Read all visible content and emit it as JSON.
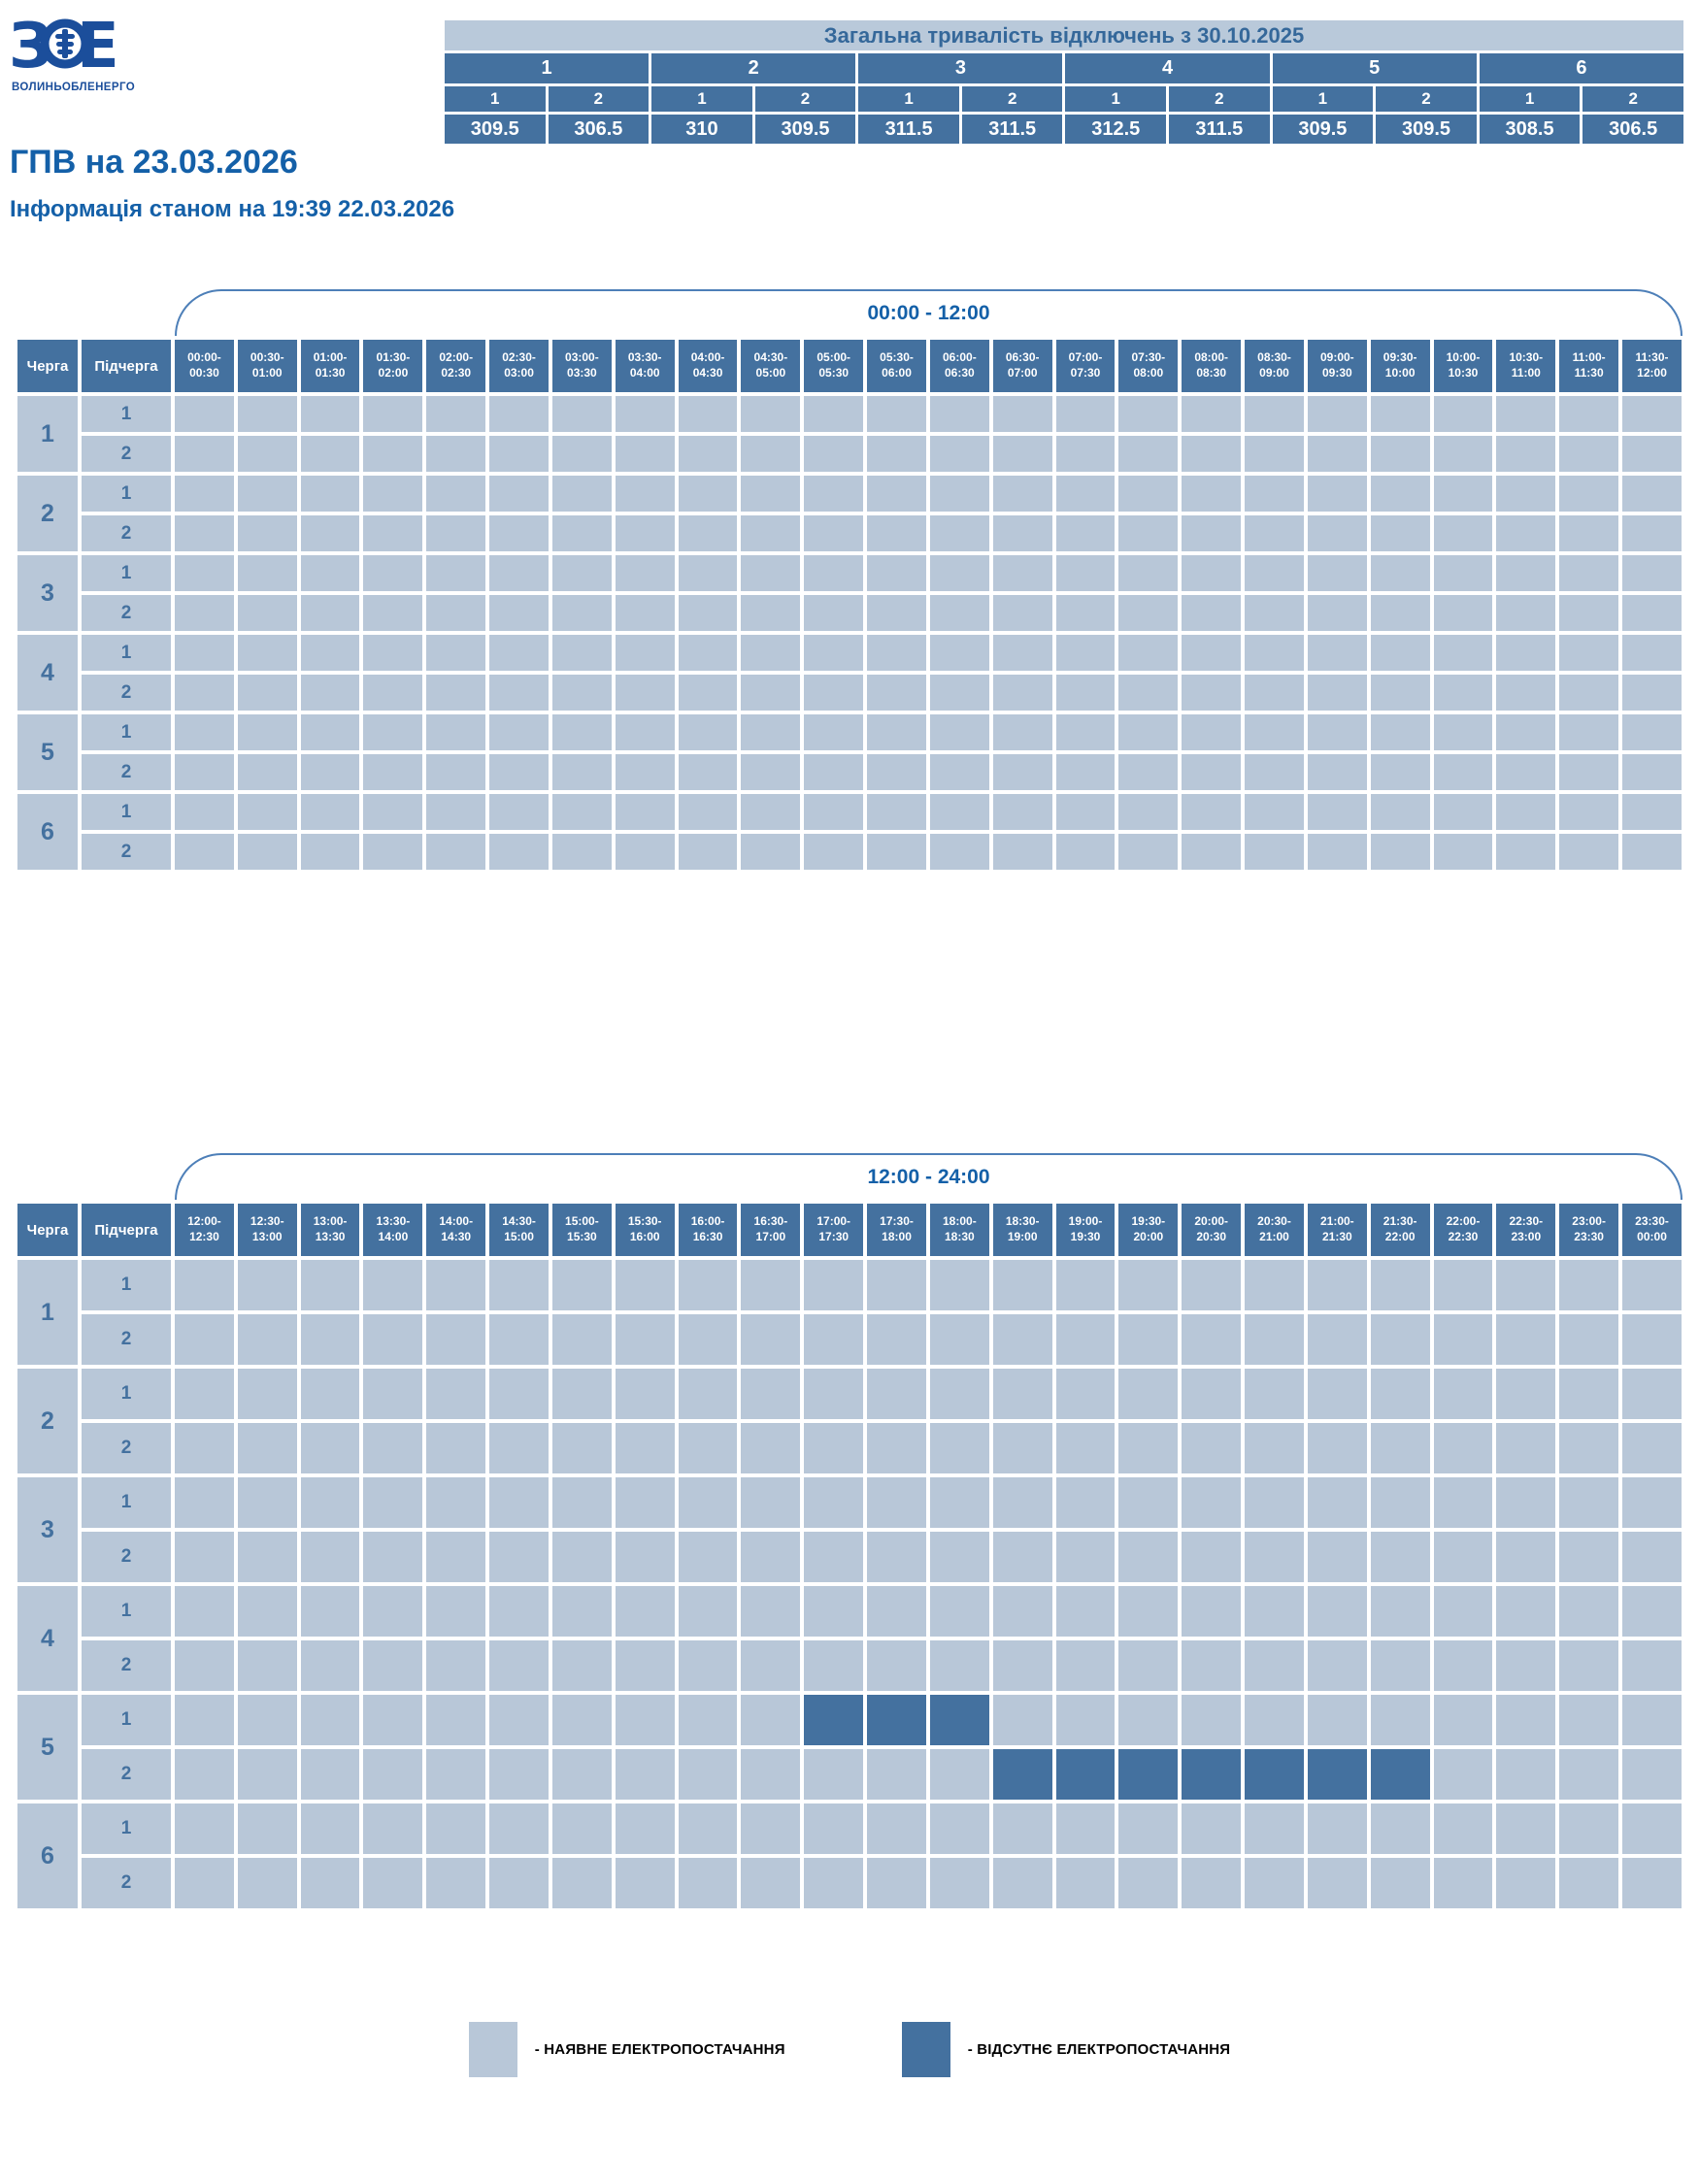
{
  "colors": {
    "accent": "#44719f",
    "light_cell": "#b8c7d8",
    "band_bg": "#b9c9da",
    "band_text": "#35689a",
    "title_text": "#1460a8",
    "bracket_line": "#4d7fb8",
    "logo_blue": "#1b4e9b",
    "legend_text": "#000000"
  },
  "logo": {
    "caption": "ВОЛИНЬОБЛЕНЕРГО"
  },
  "page": {
    "title": "ГПВ на 23.03.2026",
    "subtitle": "Інформація станом на 19:39 22.03.2026"
  },
  "summary": {
    "title": "Загальна тривалість відключень з 30.10.2025",
    "groups": [
      "1",
      "2",
      "3",
      "4",
      "5",
      "6"
    ],
    "sub_headers": [
      "1",
      "2",
      "1",
      "2",
      "1",
      "2",
      "1",
      "2",
      "1",
      "2",
      "1",
      "2"
    ],
    "values": [
      "309.5",
      "306.5",
      "310",
      "309.5",
      "311.5",
      "311.5",
      "312.5",
      "311.5",
      "309.5",
      "309.5",
      "308.5",
      "306.5"
    ]
  },
  "schedule": {
    "col_queue": "Черга",
    "col_subqueue": "Підчерга",
    "queues": [
      "1",
      "2",
      "3",
      "4",
      "5",
      "6"
    ],
    "subqueues": [
      "1",
      "2"
    ],
    "tables": [
      {
        "period_label": "00:00 - 12:00",
        "slots": [
          "00:00-00:30",
          "00:30-01:00",
          "01:00-01:30",
          "01:30-02:00",
          "02:00-02:30",
          "02:30-03:00",
          "03:00-03:30",
          "03:30-04:00",
          "04:00-04:30",
          "04:30-05:00",
          "05:00-05:30",
          "05:30-06:00",
          "06:00-06:30",
          "06:30-07:00",
          "07:00-07:30",
          "07:30-08:00",
          "08:00-08:30",
          "08:30-09:00",
          "09:00-09:30",
          "09:30-10:00",
          "10:00-10:30",
          "10:30-11:00",
          "11:00-11:30",
          "11:30-12:00"
        ],
        "outages": {}
      },
      {
        "period_label": "12:00 - 24:00",
        "slots": [
          "12:00-12:30",
          "12:30-13:00",
          "13:00-13:30",
          "13:30-14:00",
          "14:00-14:30",
          "14:30-15:00",
          "15:00-15:30",
          "15:30-16:00",
          "16:00-16:30",
          "16:30-17:00",
          "17:00-17:30",
          "17:30-18:00",
          "18:00-18:30",
          "18:30-19:00",
          "19:00-19:30",
          "19:30-20:00",
          "20:00-20:30",
          "20:30-21:00",
          "21:00-21:30",
          "21:30-22:00",
          "22:00-22:30",
          "22:30-23:00",
          "23:00-23:30",
          "23:30-00:00"
        ],
        "outages": {
          "5-1": [
            10,
            11,
            12
          ],
          "5-2": [
            13,
            14,
            15,
            16,
            17,
            18,
            19
          ]
        }
      }
    ]
  },
  "legend": {
    "available": "- НАЯВНЕ ЕЛЕКТРОПОСТАЧАННЯ",
    "unavailable": "- ВІДСУТНЄ ЕЛЕКТРОПОСТАЧАННЯ"
  }
}
